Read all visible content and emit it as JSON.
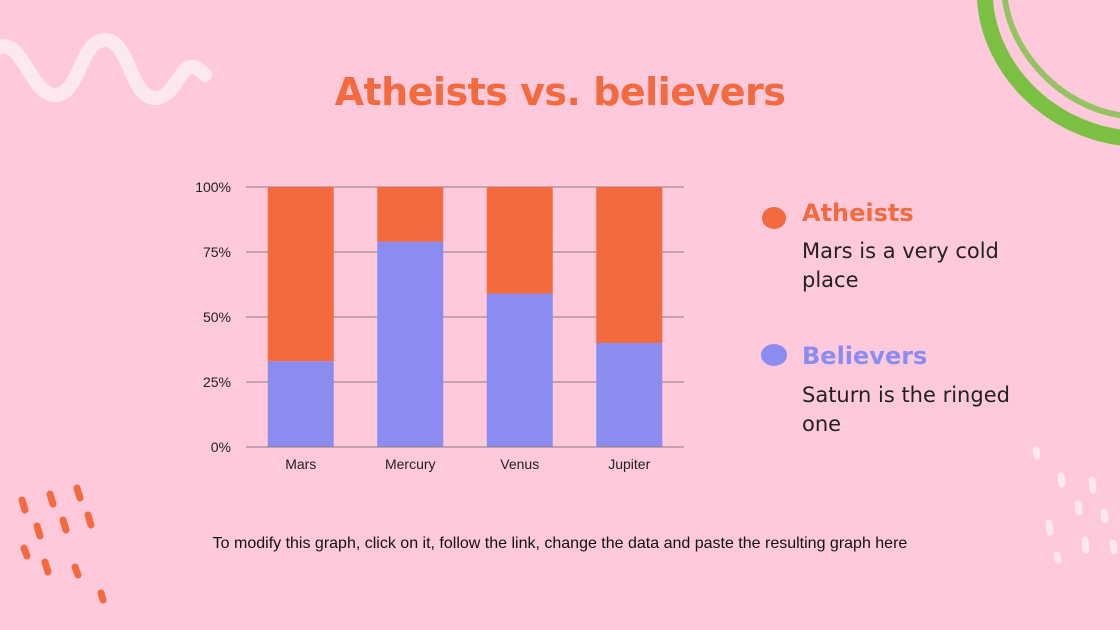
{
  "slide": {
    "title": "Atheists vs. believers",
    "footer": "To modify this graph, click on it, follow the link, change the data and paste the resulting graph here"
  },
  "legend": [
    {
      "name": "Atheists",
      "description": "Mars is a very cold place"
    },
    {
      "name": "Believers",
      "description": "Saturn is the ringed one"
    }
  ],
  "colors": {
    "background": "#ffc9dc",
    "accent": "#f26a3d",
    "atheists": "#f26a3d",
    "believers": "#8a8cf0",
    "decor_green": "#7bc043",
    "decor_white": "#fde8ee"
  },
  "chart_data": {
    "type": "bar",
    "stacked": "percent",
    "categories": [
      "Mars",
      "Mercury",
      "Venus",
      "Jupiter"
    ],
    "series": [
      {
        "name": "Believers",
        "values": [
          33,
          79,
          59,
          40
        ]
      },
      {
        "name": "Atheists",
        "values": [
          67,
          21,
          41,
          60
        ]
      }
    ],
    "yticks": [
      "0%",
      "25%",
      "50%",
      "75%",
      "100%"
    ],
    "ylim": [
      0,
      100
    ],
    "grid": true
  }
}
